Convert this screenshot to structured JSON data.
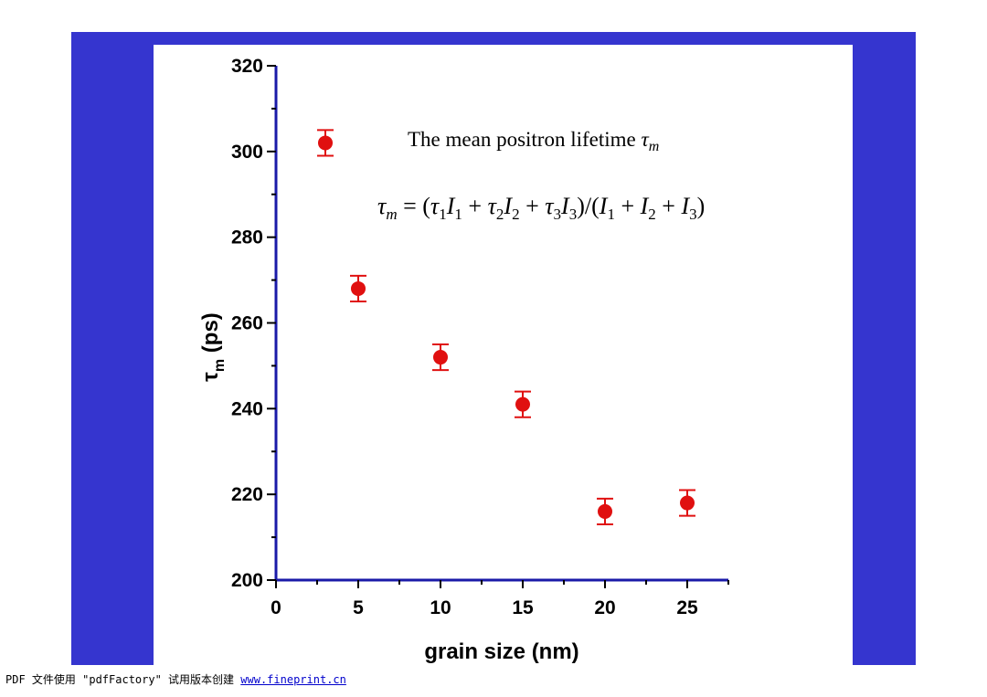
{
  "colors": {
    "frame": "#3535cf",
    "panel": "#ffffff",
    "axis": "#1a1aa8",
    "marker": "#e01010"
  },
  "annotation": {
    "title_text": "The mean positron lifetime ",
    "title_symbol": "τ",
    "title_symbol_sub": "m",
    "formula": {
      "lhs": "τ",
      "lhs_sub": "m",
      "rhs_parts": [
        {
          "t": " = (",
          "i": false
        },
        {
          "t": "τ",
          "i": true
        },
        {
          "sub": "1"
        },
        {
          "t": "I",
          "i": true
        },
        {
          "sub": "1"
        },
        {
          "t": " + ",
          "i": false
        },
        {
          "t": "τ",
          "i": true
        },
        {
          "sub": "2"
        },
        {
          "t": "I",
          "i": true
        },
        {
          "sub": "2"
        },
        {
          "t": " + ",
          "i": false
        },
        {
          "t": "τ",
          "i": true
        },
        {
          "sub": "3"
        },
        {
          "t": "I",
          "i": true
        },
        {
          "sub": "3"
        },
        {
          "t": ")/(",
          "i": false
        },
        {
          "t": "I",
          "i": true
        },
        {
          "sub": "1"
        },
        {
          "t": " + ",
          "i": false
        },
        {
          "t": "I",
          "i": true
        },
        {
          "sub": "2"
        },
        {
          "t": " + ",
          "i": false
        },
        {
          "t": "I",
          "i": true
        },
        {
          "sub": "3"
        },
        {
          "t": ")",
          "i": false
        }
      ]
    }
  },
  "chart_data": {
    "type": "scatter",
    "xlabel": "grain size (nm)",
    "ylabel_symbol": "τ",
    "ylabel_sub": "m",
    "ylabel_unit": " (ps)",
    "xlim": [
      0,
      27.5
    ],
    "ylim": [
      200,
      320
    ],
    "xticks": [
      0,
      5,
      10,
      15,
      20,
      25
    ],
    "yticks": [
      200,
      220,
      240,
      260,
      280,
      300,
      320
    ],
    "x_minor_step": 2.5,
    "y_minor_step": 10,
    "grid": false,
    "points": [
      {
        "x": 3,
        "y": 302,
        "err": 3
      },
      {
        "x": 5,
        "y": 268,
        "err": 3
      },
      {
        "x": 10,
        "y": 252,
        "err": 3
      },
      {
        "x": 15,
        "y": 241,
        "err": 3
      },
      {
        "x": 20,
        "y": 216,
        "err": 3
      },
      {
        "x": 25,
        "y": 218,
        "err": 3
      }
    ]
  },
  "footer": {
    "text": "PDF 文件使用 \"pdfFactory\" 试用版本创建 ",
    "link": "www.fineprint.cn"
  }
}
